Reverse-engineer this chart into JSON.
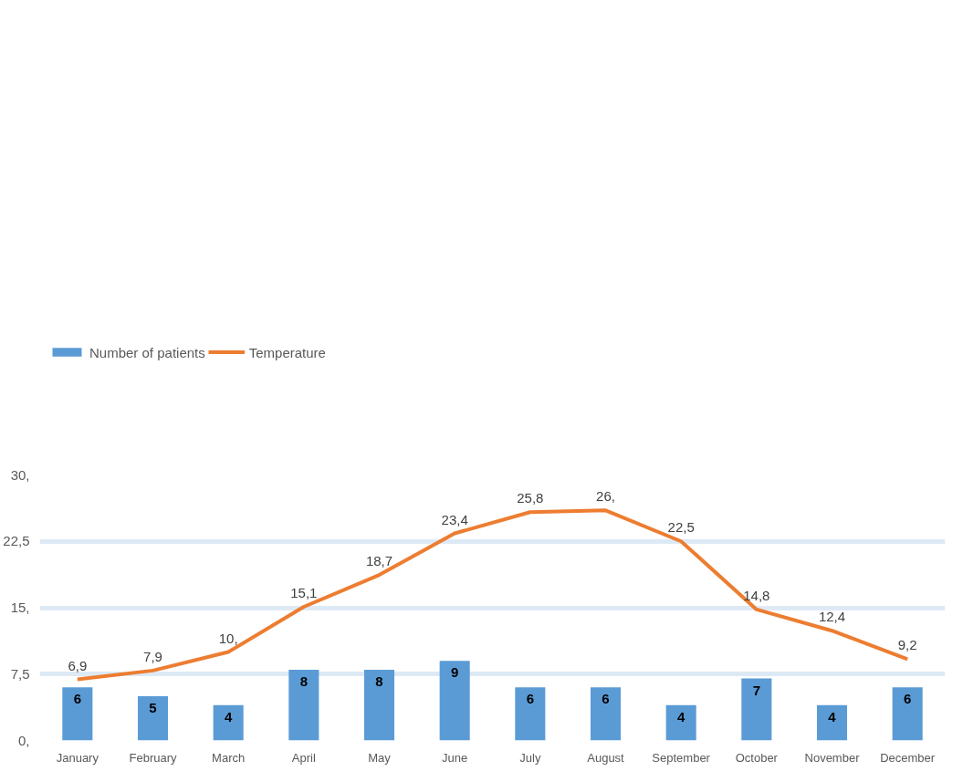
{
  "chart_data": {
    "type": "bar",
    "categories": [
      "January",
      "February",
      "March",
      "April",
      "May",
      "June",
      "July",
      "August",
      "September",
      "October",
      "November",
      "December"
    ],
    "series": [
      {
        "name": "Number of patients",
        "color": "#5b9bd5",
        "values": [
          6,
          5,
          4,
          8,
          8,
          9,
          6,
          6,
          4,
          7,
          4,
          6
        ],
        "value_labels": [
          "6",
          "5",
          "4",
          "8",
          "8",
          "9",
          "6",
          "6",
          "4",
          "7",
          "4",
          "6"
        ]
      },
      {
        "name": "Temperature",
        "type": "line",
        "color": "#ed7d31",
        "values": [
          6.9,
          7.9,
          10,
          15.1,
          18.7,
          23.4,
          25.8,
          26,
          22.5,
          14.8,
          12.4,
          9.2
        ],
        "value_labels": [
          "6,9",
          "7,9",
          "10,",
          "15,1",
          "18,7",
          "23,4",
          "25,8",
          "26,",
          "22,5",
          "14,8",
          "12,4",
          "9,2"
        ]
      }
    ],
    "ylim": [
      0,
      30
    ],
    "yticks": [
      {
        "value": 0,
        "label": "0,"
      },
      {
        "value": 7.5,
        "label": "7,5"
      },
      {
        "value": 15,
        "label": "15,"
      },
      {
        "value": 22.5,
        "label": "22,5"
      },
      {
        "value": 30,
        "label": "30,"
      }
    ],
    "grid": "y",
    "legend": "top left",
    "marker": "none",
    "line_style": "solid"
  }
}
